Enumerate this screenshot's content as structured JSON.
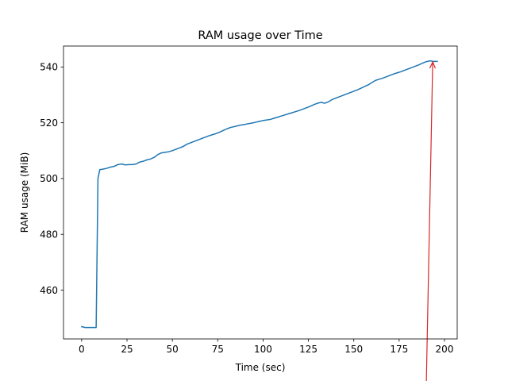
{
  "chart_data": {
    "type": "line",
    "title": "RAM usage over Time",
    "xlabel": "Time (sec)",
    "ylabel": "RAM usage (MiB)",
    "xlim": [
      -10,
      207
    ],
    "ylim": [
      442.5,
      547.5
    ],
    "xticks": [
      0,
      25,
      50,
      75,
      100,
      125,
      150,
      175,
      200
    ],
    "yticks": [
      460,
      480,
      500,
      520,
      540
    ],
    "grid": false,
    "legend": "none",
    "series": [
      {
        "color": "#1f77b4",
        "x": [
          0,
          2,
          4,
          6,
          8,
          9,
          10,
          12,
          14,
          16,
          18,
          20,
          22,
          24,
          26,
          28,
          30,
          32,
          34,
          36,
          38,
          40,
          42,
          44,
          46,
          48,
          50,
          52,
          54,
          56,
          58,
          60,
          62,
          64,
          66,
          68,
          70,
          72,
          74,
          76,
          78,
          80,
          82,
          84,
          86,
          88,
          90,
          92,
          94,
          96,
          98,
          100,
          102,
          104,
          106,
          108,
          110,
          112,
          114,
          116,
          118,
          120,
          122,
          124,
          126,
          128,
          130,
          132,
          134,
          136,
          138,
          140,
          142,
          144,
          146,
          148,
          150,
          152,
          154,
          156,
          158,
          160,
          162,
          164,
          166,
          168,
          170,
          172,
          174,
          176,
          178,
          180,
          182,
          184,
          186,
          188,
          190,
          192,
          194,
          196
        ],
        "y": [
          446.9,
          446.6,
          446.6,
          446.6,
          446.6,
          500.0,
          503.2,
          503.4,
          503.7,
          504.1,
          504.4,
          505.0,
          505.2,
          504.9,
          505.0,
          505.0,
          505.2,
          505.9,
          506.2,
          506.7,
          507.0,
          507.6,
          508.6,
          509.2,
          509.4,
          509.6,
          510.0,
          510.5,
          511.0,
          511.5,
          512.3,
          512.8,
          513.3,
          513.8,
          514.3,
          514.8,
          515.3,
          515.7,
          516.1,
          516.6,
          517.2,
          517.8,
          518.3,
          518.6,
          518.9,
          519.2,
          519.4,
          519.7,
          519.9,
          520.2,
          520.5,
          520.8,
          521.0,
          521.2,
          521.6,
          522.0,
          522.4,
          522.8,
          523.2,
          523.6,
          524.0,
          524.4,
          524.9,
          525.4,
          525.9,
          526.5,
          527.0,
          527.3,
          527.0,
          527.5,
          528.3,
          528.8,
          529.3,
          529.8,
          530.3,
          530.8,
          531.3,
          531.8,
          532.4,
          533.0,
          533.6,
          534.4,
          535.2,
          535.6,
          536.0,
          536.5,
          537.0,
          537.5,
          537.9,
          538.3,
          538.8,
          539.3,
          539.8,
          540.3,
          540.8,
          541.4,
          541.9,
          542.2,
          542.0,
          542.0
        ]
      }
    ],
    "annotation": {
      "type": "arrow",
      "color": "#d62728",
      "point_to": [
        193.5,
        541.8
      ]
    }
  }
}
